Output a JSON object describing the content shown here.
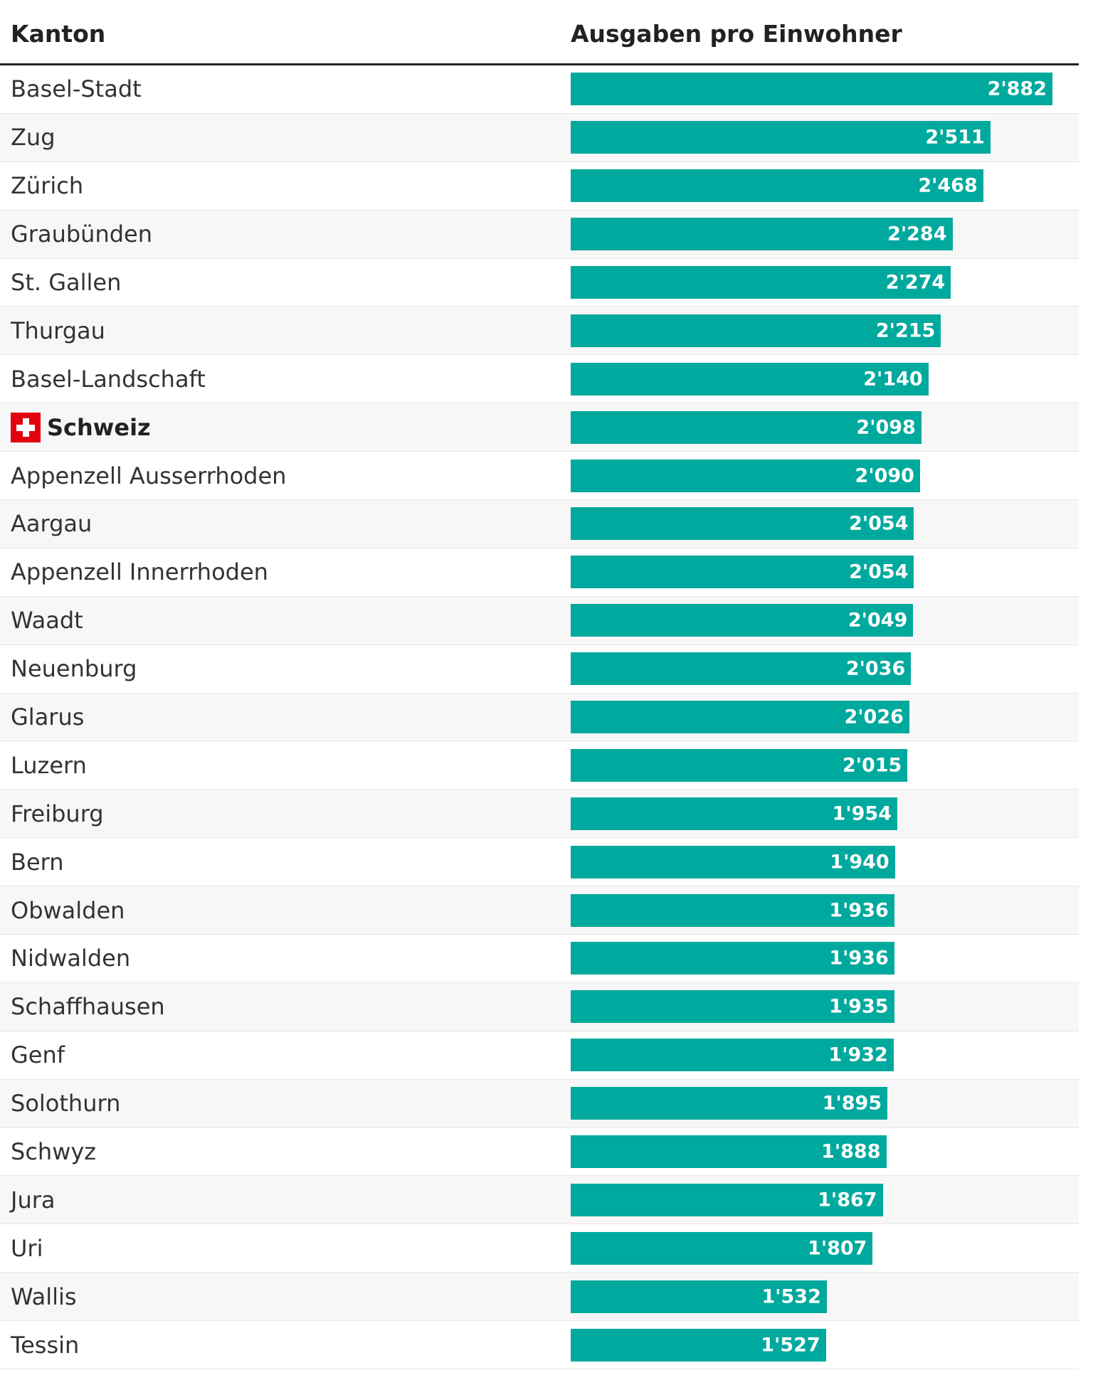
{
  "header": {
    "label_column": "Kanton",
    "value_column": "Ausgaben pro Einwohner"
  },
  "colors": {
    "bar": "#00a99d",
    "header_rule": "#222222"
  },
  "chart_data": {
    "type": "bar",
    "orientation": "horizontal",
    "title": "",
    "xlabel": "",
    "ylabel": "",
    "xlim": [
      0,
      2882
    ],
    "grid": false,
    "legend": "none",
    "categories": [
      "Basel-Stadt",
      "Zug",
      "Zürich",
      "Graubünden",
      "St. Gallen",
      "Thurgau",
      "Basel-Landschaft",
      "Schweiz",
      "Appenzell Ausserrhoden",
      "Aargau",
      "Appenzell Innerrhoden",
      "Waadt",
      "Neuenburg",
      "Glarus",
      "Luzern",
      "Freiburg",
      "Bern",
      "Obwalden",
      "Nidwalden",
      "Schaffhausen",
      "Genf",
      "Solothurn",
      "Schwyz",
      "Jura",
      "Uri",
      "Wallis",
      "Tessin"
    ],
    "values": [
      2882,
      2511,
      2468,
      2284,
      2274,
      2215,
      2140,
      2098,
      2090,
      2054,
      2054,
      2049,
      2036,
      2026,
      2015,
      1954,
      1940,
      1936,
      1936,
      1935,
      1932,
      1895,
      1888,
      1867,
      1807,
      1532,
      1527
    ],
    "labels": [
      "2'882",
      "2'511",
      "2'468",
      "2'284",
      "2'274",
      "2'215",
      "2'140",
      "2'098",
      "2'090",
      "2'054",
      "2'054",
      "2'049",
      "2'036",
      "2'026",
      "2'015",
      "1'954",
      "1'940",
      "1'936",
      "1'936",
      "1'935",
      "1'932",
      "1'895",
      "1'888",
      "1'867",
      "1'807",
      "1'532",
      "1'527"
    ],
    "highlight": "Schweiz",
    "highlight_icon": "swiss-flag-icon"
  }
}
